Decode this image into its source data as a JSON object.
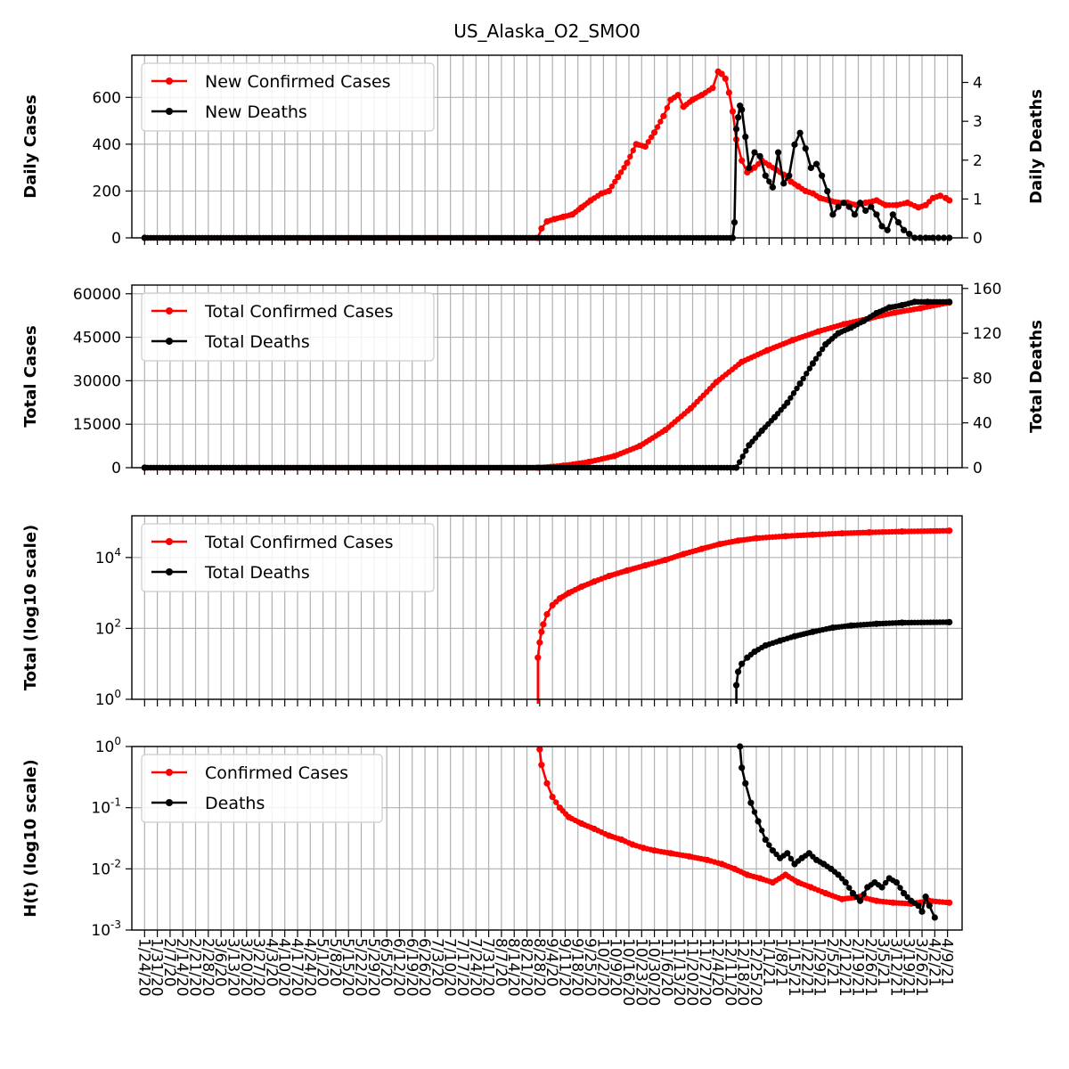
{
  "chart_data": {
    "title": "US_Alaska_O2_SMO0",
    "type": "line",
    "colors": {
      "cases": "#ff0000",
      "deaths": "#000000",
      "grid": "#b0b0b0"
    },
    "dates": [
      "1/24/20",
      "1/31/20",
      "2/7/20",
      "2/14/20",
      "2/21/20",
      "2/28/20",
      "3/6/20",
      "3/13/20",
      "3/20/20",
      "3/27/20",
      "4/3/20",
      "4/10/20",
      "4/17/20",
      "4/24/20",
      "5/1/20",
      "5/8/20",
      "5/15/20",
      "5/22/20",
      "5/29/20",
      "6/5/20",
      "6/12/20",
      "6/19/20",
      "6/26/20",
      "7/3/20",
      "7/10/20",
      "7/17/20",
      "7/24/20",
      "7/31/20",
      "8/7/20",
      "8/14/20",
      "8/21/20",
      "8/28/20",
      "9/4/20",
      "9/11/20",
      "9/18/20",
      "9/25/20",
      "10/2/20",
      "10/9/20",
      "10/16/20",
      "10/23/20",
      "10/30/20",
      "11/6/20",
      "11/13/20",
      "11/20/20",
      "11/27/20",
      "12/4/20",
      "12/11/20",
      "12/18/20",
      "12/25/20",
      "1/1/21",
      "1/8/21",
      "1/15/21",
      "1/22/21",
      "1/29/21",
      "2/5/21",
      "2/12/21",
      "2/19/21",
      "2/26/21",
      "3/5/21",
      "3/12/21",
      "3/19/21",
      "3/26/21",
      "4/2/21",
      "4/9/21"
    ],
    "panels": [
      {
        "ylabel": "Daily Cases",
        "ylabel_right": "Daily Deaths",
        "yscale": "linear",
        "ylim": [
          0,
          780
        ],
        "yticks": [
          0,
          200,
          400,
          600
        ],
        "ytick_labels": [
          "0",
          "200",
          "400",
          "600"
        ],
        "ylim_right": [
          0,
          4.7
        ],
        "yticks_right": [
          0,
          1,
          2,
          3,
          4
        ],
        "ytick_labels_right": [
          "0",
          "1",
          "2",
          "3",
          "4"
        ],
        "legend": [
          "New Confirmed Cases",
          "New Deaths"
        ],
        "legend_loc": "upper left",
        "series": [
          {
            "name": "New Confirmed Cases",
            "color": "#ff0000",
            "axis": "left",
            "x": [
              "1/24/20",
              "8/27/20",
              "8/29/20",
              "9/1/20",
              "9/5/20",
              "9/10/20",
              "9/15/20",
              "9/20/20",
              "9/25/20",
              "10/1/20",
              "10/5/20",
              "10/10/20",
              "10/15/20",
              "10/20/20",
              "10/25/20",
              "10/30/20",
              "11/4/20",
              "11/8/20",
              "11/12/20",
              "11/15/20",
              "11/20/20",
              "11/25/20",
              "12/1/20",
              "12/4/20",
              "12/6/20",
              "12/8/20",
              "12/10/20",
              "12/12/20",
              "12/14/20",
              "12/17/20",
              "12/20/20",
              "12/24/20",
              "12/28/20",
              "1/1/21",
              "1/5/21",
              "1/9/21",
              "1/13/21",
              "1/17/21",
              "1/21/21",
              "1/25/21",
              "1/29/21",
              "2/3/21",
              "2/8/21",
              "2/13/21",
              "2/18/21",
              "2/23/21",
              "3/1/21",
              "3/6/21",
              "3/12/21",
              "3/18/21",
              "3/24/21",
              "3/28/21",
              "4/1/21",
              "4/5/21",
              "4/8/21",
              "4/10/21"
            ],
            "y": [
              0,
              0,
              40,
              70,
              80,
              90,
              100,
              130,
              160,
              190,
              200,
              260,
              320,
              400,
              390,
              450,
              520,
              590,
              610,
              560,
              590,
              610,
              640,
              710,
              700,
              680,
              620,
              540,
              420,
              330,
              280,
              300,
              330,
              310,
              290,
              270,
              240,
              220,
              200,
              190,
              170,
              160,
              150,
              150,
              140,
              150,
              160,
              140,
              140,
              150,
              130,
              140,
              170,
              180,
              170,
              160
            ]
          },
          {
            "name": "New Deaths",
            "color": "#000000",
            "axis": "right",
            "x": [
              "1/24/20",
              "12/12/20",
              "12/13/20",
              "12/14/20",
              "12/15/20",
              "12/16/20",
              "12/17/20",
              "12/19/20",
              "12/21/20",
              "12/24/20",
              "12/27/20",
              "12/30/20",
              "1/3/21",
              "1/6/21",
              "1/9/21",
              "1/12/21",
              "1/15/21",
              "1/18/21",
              "1/21/21",
              "1/24/21",
              "1/27/21",
              "1/30/21",
              "2/2/21",
              "2/5/21",
              "2/8/21",
              "2/11/21",
              "2/14/21",
              "2/17/21",
              "2/20/21",
              "2/23/21",
              "2/26/21",
              "3/1/21",
              "3/4/21",
              "3/7/21",
              "3/10/21",
              "3/13/21",
              "3/16/21",
              "3/19/21",
              "3/22/21",
              "3/25/21",
              "3/28/21",
              "4/1/21",
              "4/4/21",
              "4/7/21",
              "4/10/21"
            ],
            "y": [
              0,
              0,
              0.4,
              2.8,
              3.1,
              3.4,
              3.3,
              2.6,
              1.8,
              2.2,
              2.1,
              1.6,
              1.3,
              2.2,
              1.4,
              1.6,
              2.4,
              2.7,
              2.3,
              1.8,
              1.9,
              1.6,
              1.2,
              0.6,
              0.8,
              0.9,
              0.8,
              0.6,
              0.9,
              0.7,
              0.8,
              0.6,
              0.3,
              0.2,
              0.6,
              0.4,
              0.2,
              0.1,
              0,
              0,
              0,
              0,
              0,
              0,
              0
            ]
          }
        ]
      },
      {
        "ylabel": "Total Cases",
        "ylabel_right": "Total Deaths",
        "yscale": "linear",
        "ylim": [
          0,
          63000
        ],
        "yticks": [
          0,
          15000,
          30000,
          45000,
          60000
        ],
        "ytick_labels": [
          "0",
          "15000",
          "30000",
          "45000",
          "60000"
        ],
        "ylim_right": [
          0,
          163
        ],
        "yticks_right": [
          0,
          40,
          80,
          120,
          160
        ],
        "ytick_labels_right": [
          "0",
          "40",
          "80",
          "120",
          "160"
        ],
        "legend": [
          "Total Confirmed Cases",
          "Total Deaths"
        ],
        "legend_loc": "upper left",
        "series": [
          {
            "name": "Total Confirmed Cases",
            "color": "#ff0000",
            "axis": "left",
            "x": [
              "1/24/20",
              "8/27/20",
              "9/10/20",
              "9/24/20",
              "10/8/20",
              "10/22/20",
              "11/5/20",
              "11/19/20",
              "12/3/20",
              "12/17/20",
              "12/31/20",
              "1/14/21",
              "1/28/21",
              "2/11/21",
              "2/25/21",
              "3/11/21",
              "3/25/21",
              "4/10/21"
            ],
            "y": [
              0,
              0,
              700,
              2000,
              4000,
              7500,
              13000,
              20500,
              29500,
              36500,
              40500,
              44000,
              47000,
              49500,
              51500,
              53500,
              55000,
              57000
            ]
          },
          {
            "name": "Total Deaths",
            "color": "#000000",
            "axis": "right",
            "x": [
              "1/24/20",
              "12/14/20",
              "12/21/20",
              "12/28/20",
              "1/4/21",
              "1/11/21",
              "1/18/21",
              "1/25/21",
              "2/1/21",
              "2/8/21",
              "2/15/21",
              "2/22/21",
              "3/1/21",
              "3/8/21",
              "3/15/21",
              "3/22/21",
              "3/29/21",
              "4/10/21"
            ],
            "y": [
              0,
              0,
              20,
              33,
              45,
              58,
              75,
              93,
              110,
              120,
              125,
              131,
              138,
              143,
              145,
              148,
              148,
              148
            ]
          }
        ]
      },
      {
        "ylabel": "Total (log10 scale)",
        "yscale": "log",
        "ylim": [
          1,
          150000
        ],
        "yticks": [
          1,
          100,
          10000
        ],
        "ytick_labels": [
          "10^0",
          "10^2",
          "10^4"
        ],
        "legend": [
          "Total Confirmed Cases",
          "Total Deaths"
        ],
        "legend_loc": "upper left",
        "series": [
          {
            "name": "Total Confirmed Cases",
            "color": "#ff0000",
            "axis": "left",
            "x": [
              "8/27/20",
              "8/28/20",
              "8/29/20",
              "8/30/20",
              "9/1/20",
              "9/4/20",
              "9/8/20",
              "9/13/20",
              "9/20/20",
              "9/27/20",
              "10/5/20",
              "10/15/20",
              "10/25/20",
              "11/5/20",
              "11/15/20",
              "11/25/20",
              "12/5/20",
              "12/15/20",
              "12/25/20",
              "1/10/21",
              "1/25/21",
              "2/10/21",
              "2/25/21",
              "3/15/21",
              "4/10/21"
            ],
            "y": [
              15,
              40,
              80,
              130,
              250,
              450,
              700,
              1000,
              1500,
              2100,
              3000,
              4300,
              6000,
              8500,
              12500,
              17500,
              24000,
              30000,
              35000,
              40000,
              44000,
              48000,
              51000,
              54000,
              57000
            ]
          },
          {
            "name": "Total Deaths",
            "color": "#000000",
            "axis": "left",
            "x": [
              "12/14/20",
              "12/15/20",
              "12/17/20",
              "12/20/20",
              "12/24/20",
              "12/30/20",
              "1/7/21",
              "1/15/21",
              "1/25/21",
              "2/5/21",
              "2/15/21",
              "3/1/21",
              "3/15/21",
              "4/10/21"
            ],
            "y": [
              2.5,
              6,
              10,
              15,
              22,
              33,
              45,
              60,
              80,
              105,
              120,
              135,
              145,
              150
            ]
          }
        ]
      },
      {
        "ylabel": "H(t) (log10 scale)",
        "yscale": "log",
        "ylim": [
          0.001,
          1
        ],
        "yticks": [
          0.001,
          0.01,
          0.1,
          1
        ],
        "ytick_labels": [
          "10^-3",
          "10^-2",
          "10^-1",
          "10^0"
        ],
        "legend": [
          "Confirmed Cases",
          "Deaths"
        ],
        "legend_loc": "upper left",
        "series": [
          {
            "name": "Confirmed Cases",
            "color": "#ff0000",
            "axis": "left",
            "x": [
              "8/28/20",
              "8/29/20",
              "9/1/20",
              "9/4/20",
              "9/8/20",
              "9/13/20",
              "9/20/20",
              "9/27/20",
              "10/5/20",
              "10/12/20",
              "10/18/20",
              "10/24/20",
              "10/30/20",
              "11/8/20",
              "11/18/20",
              "11/28/20",
              "12/6/20",
              "12/13/20",
              "12/20/20",
              "12/27/20",
              "1/3/21",
              "1/10/21",
              "1/17/21",
              "1/24/21",
              "2/1/21",
              "2/10/21",
              "2/20/21",
              "3/1/21",
              "3/10/21",
              "3/20/21",
              "3/30/21",
              "4/10/21"
            ],
            "y": [
              0.9,
              0.5,
              0.25,
              0.15,
              0.1,
              0.07,
              0.055,
              0.045,
              0.035,
              0.03,
              0.025,
              0.022,
              0.02,
              0.018,
              0.016,
              0.014,
              0.012,
              0.01,
              0.008,
              0.007,
              0.006,
              0.008,
              0.006,
              0.005,
              0.004,
              0.0032,
              0.0035,
              0.003,
              0.0028,
              0.0027,
              0.003,
              0.0028
            ]
          },
          {
            "name": "Deaths",
            "color": "#000000",
            "axis": "left",
            "x": [
              "12/16/20",
              "12/17/20",
              "12/19/20",
              "12/22/20",
              "12/26/20",
              "12/30/20",
              "1/3/21",
              "1/7/21",
              "1/11/21",
              "1/15/21",
              "1/19/21",
              "1/23/21",
              "1/27/21",
              "1/31/21",
              "2/4/21",
              "2/8/21",
              "2/12/21",
              "2/16/21",
              "2/20/21",
              "2/24/21",
              "2/28/21",
              "3/4/21",
              "3/8/21",
              "3/12/21",
              "3/16/21",
              "3/20/21",
              "3/24/21",
              "3/26/21",
              "3/28/21",
              "3/30/21",
              "4/2/21"
            ],
            "y": [
              1.0,
              0.45,
              0.25,
              0.12,
              0.06,
              0.03,
              0.02,
              0.015,
              0.018,
              0.012,
              0.015,
              0.018,
              0.014,
              0.012,
              0.01,
              0.008,
              0.006,
              0.004,
              0.003,
              0.005,
              0.006,
              0.005,
              0.007,
              0.006,
              0.004,
              0.003,
              0.0025,
              0.002,
              0.0035,
              0.0025,
              0.0016
            ]
          }
        ]
      }
    ]
  }
}
